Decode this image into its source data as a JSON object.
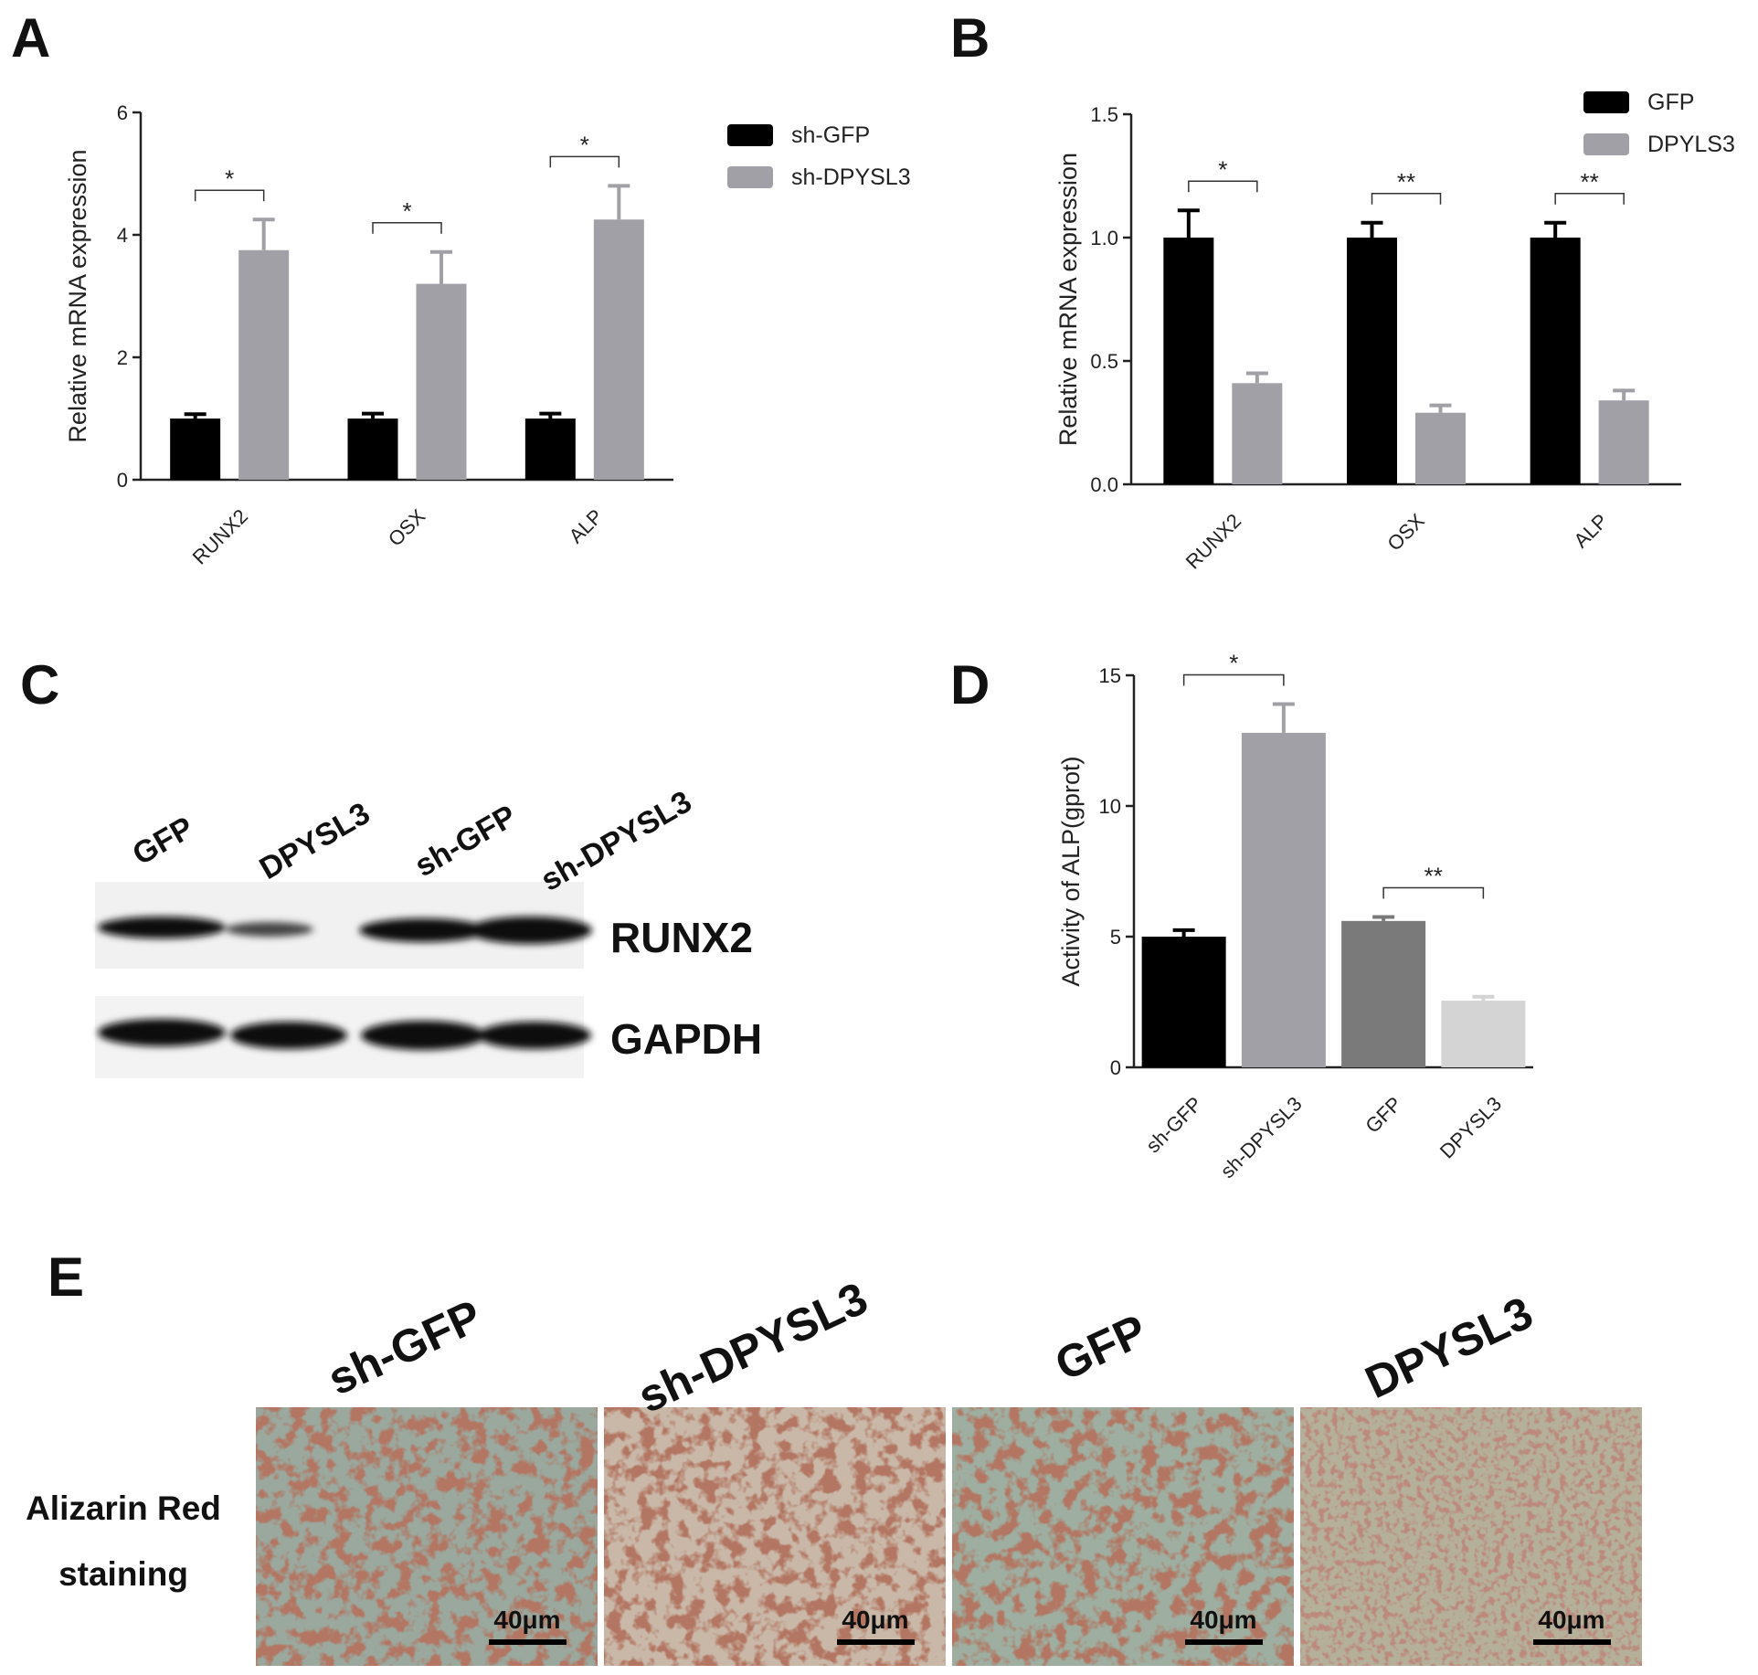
{
  "panel_labels": [
    "A",
    "B",
    "C",
    "D",
    "E"
  ],
  "chart_data": [
    {
      "type": "bar",
      "ylabel": "Relative mRNA expression",
      "categories": [
        "RUNX2",
        "OSX",
        "ALP"
      ],
      "series": [
        {
          "name": "sh-GFP",
          "color": "#000000",
          "values": [
            1,
            1,
            1
          ],
          "errors": [
            0.07,
            0.08,
            0.08
          ]
        },
        {
          "name": "sh-DPYSL3",
          "color": "#a0a0a6",
          "values": [
            3.75,
            3.2,
            4.25
          ],
          "errors": [
            0.5,
            0.52,
            0.55
          ]
        }
      ],
      "significance": [
        "*",
        "*",
        "*"
      ],
      "ylim": [
        0,
        6
      ],
      "yticks": [
        0,
        2,
        4,
        6
      ]
    },
    {
      "type": "bar",
      "ylabel": "Relative mRNA expression",
      "categories": [
        "RUNX2",
        "OSX",
        "ALP"
      ],
      "series": [
        {
          "name": "GFP",
          "color": "#000000",
          "values": [
            1,
            1,
            1
          ],
          "errors": [
            0.11,
            0.06,
            0.06
          ]
        },
        {
          "name": "DPYLS3",
          "color": "#a0a0a6",
          "values": [
            0.41,
            0.29,
            0.34
          ],
          "errors": [
            0.04,
            0.03,
            0.04
          ]
        }
      ],
      "significance": [
        "*",
        "**",
        "**"
      ],
      "ylim": [
        0,
        1.5
      ],
      "yticks": [
        {
          "value": 0,
          "label": "0.0"
        },
        0.5,
        {
          "value": 1,
          "label": "1.0"
        },
        1.5
      ]
    },
    {
      "type": "bar",
      "ylabel": "Activity of ALP(gprot)",
      "categories": [
        "sh-GFP",
        "sh-DPYSL3",
        "GFP",
        "DPYSL3"
      ],
      "values": [
        5,
        12.8,
        5.6,
        2.55
      ],
      "errors": [
        0.25,
        1.1,
        0.15,
        0.15
      ],
      "colors": [
        "#000000",
        "#a0a0a6",
        "#7a7a7a",
        "#d4d4d4"
      ],
      "significance": [
        "*",
        "**"
      ],
      "ylim": [
        0,
        15
      ],
      "yticks": [
        0,
        5,
        10,
        15
      ]
    }
  ],
  "blot": {
    "lanes": [
      "GFP",
      "DPYSL3",
      "sh-GFP",
      "sh-DPYSL3"
    ],
    "rows": [
      "RUNX2",
      "GAPDH"
    ]
  },
  "staining": {
    "groups": [
      "sh-GFP",
      "sh-DPYSL3",
      "GFP",
      "DPYSL3"
    ],
    "row_label": "Alizarin Red staining",
    "scale_bars": [
      "40μm",
      "40μm",
      "40μm",
      "40μm"
    ]
  }
}
